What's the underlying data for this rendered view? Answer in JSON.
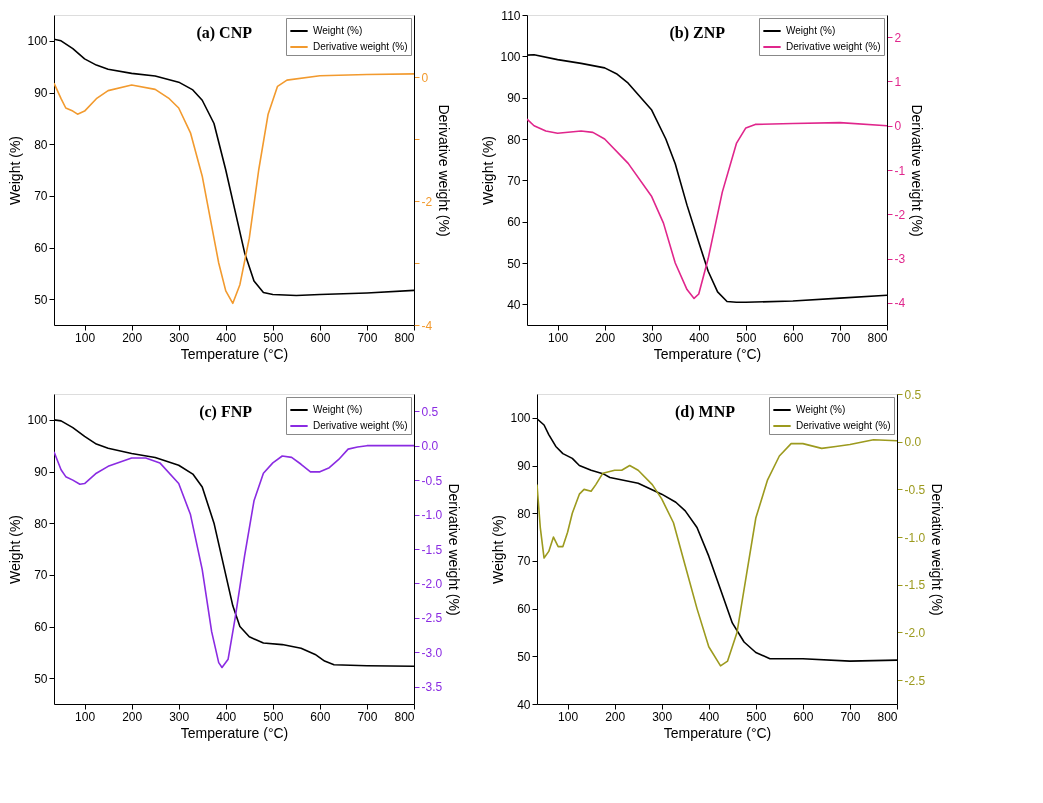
{
  "chart_data": [
    {
      "type": "line",
      "title": "(a) CNP",
      "xlabel": "Temperature (°C)",
      "ylabel": "Weight (%)",
      "y2label": "Derivative weight (%)",
      "legend": "top right",
      "xlim": [
        35,
        800
      ],
      "xticks": [
        100,
        200,
        300,
        400,
        500,
        600,
        700,
        800
      ],
      "ylim": [
        45,
        105
      ],
      "yticks": [
        50,
        60,
        70,
        80,
        90,
        100
      ],
      "y2lim": [
        -4,
        1
      ],
      "y2ticks": [
        -4,
        {
          "value": -3,
          "label": null
        },
        -2,
        {
          "value": -1,
          "label": null
        },
        0
      ],
      "series": [
        {
          "name": "Weight (%)",
          "color": "#000000",
          "x": [
            35,
            50,
            75,
            100,
            125,
            150,
            200,
            250,
            300,
            330,
            350,
            375,
            400,
            420,
            440,
            460,
            480,
            500,
            550,
            600,
            700,
            800
          ],
          "values": [
            100.3,
            100,
            98.5,
            96.5,
            95.3,
            94.5,
            93.7,
            93.2,
            92.0,
            90.5,
            88.5,
            84,
            75,
            67,
            59,
            53.5,
            51.3,
            50.9,
            50.7,
            50.9,
            51.2,
            51.7
          ]
        },
        {
          "name": "Derivative weight (%)",
          "color": "#f29a2e",
          "axis": "y2",
          "x": [
            35,
            50,
            60,
            75,
            85,
            100,
            125,
            150,
            200,
            250,
            280,
            300,
            325,
            350,
            370,
            385,
            400,
            415,
            430,
            450,
            470,
            490,
            510,
            530,
            600,
            700,
            800
          ],
          "values": [
            -0.1,
            -0.35,
            -0.5,
            -0.55,
            -0.6,
            -0.55,
            -0.35,
            -0.22,
            -0.13,
            -0.2,
            -0.35,
            -0.5,
            -0.9,
            -1.6,
            -2.4,
            -3.0,
            -3.45,
            -3.65,
            -3.35,
            -2.6,
            -1.5,
            -0.6,
            -0.15,
            -0.05,
            0.02,
            0.04,
            0.05
          ]
        }
      ]
    },
    {
      "type": "line",
      "title": "(b) ZNP",
      "xlabel": "Temperature (°C)",
      "ylabel": "Weight (%)",
      "y2label": "Derivative weight (%)",
      "legend": "top right",
      "xlim": [
        35,
        800
      ],
      "xticks": [
        100,
        200,
        300,
        400,
        500,
        600,
        700,
        800
      ],
      "ylim": [
        35,
        110
      ],
      "yticks": [
        40,
        50,
        60,
        70,
        80,
        90,
        100,
        110
      ],
      "y2lim": [
        -4.5,
        2.5
      ],
      "y2ticks": [
        -4,
        -3,
        -2,
        -1,
        0,
        1,
        2
      ],
      "series": [
        {
          "name": "Weight (%)",
          "color": "#000000",
          "x": [
            35,
            50,
            100,
            150,
            200,
            225,
            250,
            300,
            330,
            350,
            375,
            400,
            420,
            440,
            460,
            480,
            500,
            600,
            700,
            800
          ],
          "values": [
            100.3,
            100.4,
            99.2,
            98.3,
            97.2,
            95.8,
            93.5,
            87,
            80,
            74,
            64,
            55,
            48,
            43,
            40.7,
            40.5,
            40.5,
            40.8,
            41.5,
            42.2
          ]
        },
        {
          "name": "Derivative weight (%)",
          "color": "#e0268c",
          "axis": "y2",
          "x": [
            35,
            50,
            75,
            100,
            150,
            175,
            200,
            250,
            300,
            325,
            350,
            375,
            390,
            400,
            420,
            450,
            480,
            500,
            520,
            600,
            700,
            800
          ],
          "values": [
            0.15,
            0,
            -0.12,
            -0.17,
            -0.12,
            -0.15,
            -0.3,
            -0.85,
            -1.6,
            -2.2,
            -3.1,
            -3.7,
            -3.9,
            -3.8,
            -3.0,
            -1.5,
            -0.4,
            -0.05,
            0.03,
            0.05,
            0.07,
            0.0
          ]
        }
      ]
    },
    {
      "type": "line",
      "title": "(c) FNP",
      "xlabel": "Temperature (°C)",
      "ylabel": "Weight (%)",
      "y2label": "Derivative weight (%)",
      "legend": "top right",
      "xlim": [
        35,
        800
      ],
      "xticks": [
        100,
        200,
        300,
        400,
        500,
        600,
        700,
        800
      ],
      "ylim": [
        45,
        105
      ],
      "yticks": [
        50,
        60,
        70,
        80,
        90,
        100
      ],
      "y2lim": [
        -3.75,
        0.75
      ],
      "y2ticks": [
        -3.5,
        {
          "value": -3,
          "label": "-3.0"
        },
        -2.5,
        {
          "value": -2,
          "label": "-2.0"
        },
        -1.5,
        {
          "value": -1,
          "label": "-1.0"
        },
        -0.5,
        {
          "value": 0,
          "label": "0.0"
        },
        0.5
      ],
      "series": [
        {
          "name": "Weight (%)",
          "color": "#000000",
          "x": [
            35,
            50,
            75,
            100,
            125,
            150,
            200,
            250,
            300,
            330,
            350,
            375,
            400,
            415,
            430,
            450,
            480,
            520,
            560,
            590,
            610,
            630,
            700,
            800
          ],
          "values": [
            100,
            99.8,
            98.5,
            96.8,
            95.3,
            94.5,
            93.5,
            92.7,
            91.2,
            89.5,
            87.0,
            80,
            70,
            64,
            60,
            58,
            56.8,
            56.5,
            55.8,
            54.6,
            53.3,
            52.6,
            52.4,
            52.3
          ]
        },
        {
          "name": "Derivative weight (%)",
          "color": "#8a2be2",
          "axis": "y2",
          "x": [
            35,
            50,
            60,
            75,
            90,
            100,
            125,
            150,
            200,
            230,
            260,
            300,
            325,
            350,
            370,
            385,
            392,
            405,
            420,
            440,
            460,
            480,
            500,
            520,
            540,
            560,
            580,
            600,
            620,
            640,
            660,
            680,
            700,
            800
          ],
          "values": [
            -0.09,
            -0.35,
            -0.45,
            -0.5,
            -0.56,
            -0.55,
            -0.4,
            -0.3,
            -0.18,
            -0.18,
            -0.25,
            -0.55,
            -1.0,
            -1.8,
            -2.7,
            -3.15,
            -3.22,
            -3.1,
            -2.5,
            -1.6,
            -0.8,
            -0.4,
            -0.25,
            -0.15,
            -0.17,
            -0.27,
            -0.38,
            -0.38,
            -0.32,
            -0.2,
            -0.05,
            -0.02,
            0,
            0
          ]
        }
      ]
    },
    {
      "type": "line",
      "title": "(d) MNP",
      "xlabel": "Temperature (°C)",
      "ylabel": "Weight (%)",
      "y2label": "Derivative weight (%)",
      "legend": "top right",
      "xlim": [
        35,
        800
      ],
      "xticks": [
        100,
        200,
        300,
        400,
        500,
        600,
        700,
        800
      ],
      "ylim": [
        40,
        105
      ],
      "yticks": [
        40,
        50,
        60,
        70,
        80,
        90,
        100
      ],
      "y2lim": [
        -2.75,
        0.5
      ],
      "y2ticks": [
        -2.5,
        {
          "value": -2,
          "label": "-2.0"
        },
        -1.5,
        {
          "value": -1,
          "label": "-1.0"
        },
        -0.5,
        {
          "value": 0,
          "label": "0.0"
        },
        0.5
      ],
      "series": [
        {
          "name": "Weight (%)",
          "color": "#000000",
          "x": [
            35,
            50,
            60,
            75,
            90,
            110,
            125,
            150,
            175,
            190,
            250,
            300,
            330,
            350,
            375,
            400,
            425,
            450,
            475,
            500,
            530,
            600,
            700,
            800
          ],
          "values": [
            99.8,
            98.5,
            96.5,
            94,
            92.5,
            91.5,
            90,
            89,
            88.3,
            87.5,
            86.3,
            84,
            82.3,
            80.5,
            77,
            71,
            64,
            57,
            53,
            50.8,
            49.5,
            49.5,
            49,
            49.2
          ]
        },
        {
          "name": "Derivative weight (%)",
          "color": "#9c9a1e",
          "axis": "y2",
          "x": [
            35,
            42,
            50,
            60,
            70,
            80,
            90,
            100,
            110,
            125,
            135,
            150,
            160,
            175,
            200,
            215,
            232,
            250,
            280,
            300,
            325,
            350,
            375,
            400,
            425,
            440,
            460,
            480,
            500,
            525,
            550,
            575,
            600,
            640,
            670,
            700,
            750,
            800
          ],
          "values": [
            -0.45,
            -0.9,
            -1.22,
            -1.15,
            -1.0,
            -1.1,
            -1.1,
            -0.95,
            -0.75,
            -0.55,
            -0.5,
            -0.52,
            -0.45,
            -0.33,
            -0.3,
            -0.3,
            -0.25,
            -0.3,
            -0.45,
            -0.6,
            -0.85,
            -1.3,
            -1.75,
            -2.15,
            -2.35,
            -2.3,
            -2.0,
            -1.4,
            -0.8,
            -0.4,
            -0.15,
            -0.02,
            -0.02,
            -0.07,
            -0.05,
            -0.03,
            0.02,
            0.01
          ]
        }
      ]
    }
  ]
}
